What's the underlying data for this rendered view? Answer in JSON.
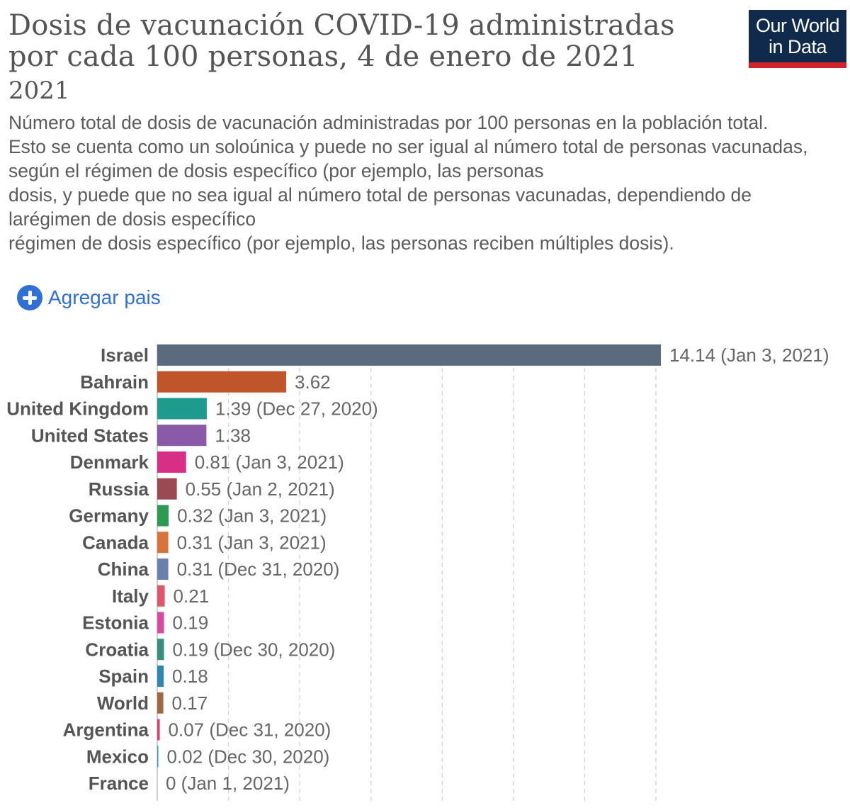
{
  "header": {
    "title": "Dosis de vacunación COVID-19 administradas por cada 100 personas, 4 de enero de 2021",
    "year": "2021",
    "description_lines": [
      "Número total de dosis de vacunación administradas por 100 personas en la población total.",
      "Esto se cuenta como un soloúnica y puede no ser igual al número total de personas vacunadas,",
      "según el régimen de dosis específico (por ejemplo, las personas",
      "dosis, y puede que no sea igual al número total de personas vacunadas, dependiendo de",
      "larégimen de dosis específico",
      "régimen de dosis específico (por ejemplo, las personas reciben múltiples dosis)."
    ]
  },
  "logo": {
    "line1": "Our World",
    "line2": "in Data"
  },
  "controls": {
    "add_country_label": "Agregar pais",
    "add_icon": "plus-circle-icon",
    "accent_color": "#2f6fd6"
  },
  "colors": {
    "brand_navy": "#0f2a4a",
    "brand_red": "#d4222b"
  },
  "chart_data": {
    "type": "bar",
    "orientation": "horizontal",
    "title": "Dosis de vacunación COVID-19 administradas por cada 100 personas, 4 de enero de 2021",
    "grid": true,
    "grid_step": 2,
    "xlim": [
      0,
      14.14
    ],
    "categories": [
      "Israel",
      "Bahrain",
      "United Kingdom",
      "United States",
      "Denmark",
      "Russia",
      "Germany",
      "Canada",
      "China",
      "Italy",
      "Estonia",
      "Croatia",
      "Spain",
      "World",
      "Argentina",
      "Mexico",
      "France"
    ],
    "values": [
      14.14,
      3.62,
      1.39,
      1.38,
      0.81,
      0.55,
      0.32,
      0.31,
      0.31,
      0.21,
      0.19,
      0.19,
      0.18,
      0.17,
      0.07,
      0.02,
      0
    ],
    "labels": [
      "14.14 (Jan 3, 2021)",
      "3.62",
      "1.39 (Dec 27, 2020)",
      "1.38",
      "0.81 (Jan 3, 2021)",
      "0.55 (Jan 2, 2021)",
      "0.32 (Jan 3, 2021)",
      "0.31 (Jan 3, 2021)",
      "0.31 (Dec 31, 2020)",
      "0.21",
      "0.19",
      "0.19 (Dec 30, 2020)",
      "0.18",
      "0.17",
      "0.07 (Dec 31, 2020)",
      "0.02 (Dec 30, 2020)",
      "0 (Jan 1, 2021)"
    ],
    "colors": [
      "#5c6a7d",
      "#c0552b",
      "#1e9b8c",
      "#8a5aa8",
      "#d82f86",
      "#9a4a52",
      "#2c9a52",
      "#d8733a",
      "#6b80ad",
      "#e2566d",
      "#d94aa4",
      "#3a8f7a",
      "#2d87b0",
      "#a06840",
      "#d6417a",
      "#2aa79b",
      "#4a77b5"
    ]
  }
}
